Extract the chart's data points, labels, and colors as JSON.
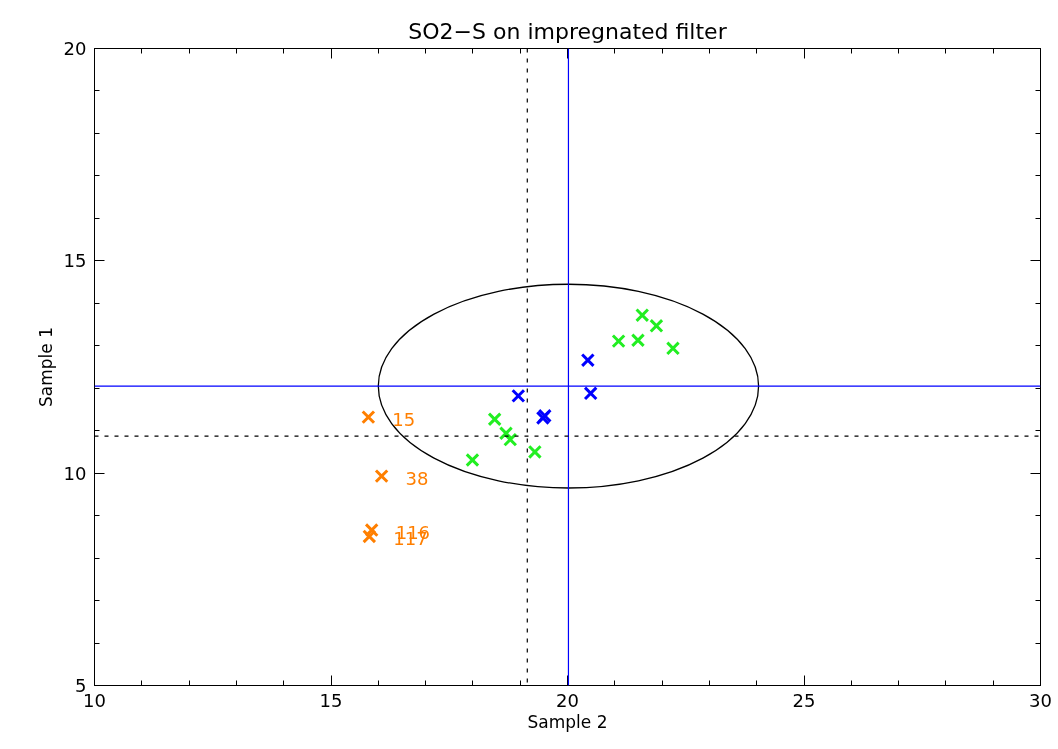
{
  "chart_data": {
    "type": "scatter",
    "title": "SO2−S on impregnated filter",
    "xlabel": "Sample 2",
    "ylabel": "Sample 1",
    "xlim": [
      10,
      30
    ],
    "ylim": [
      5,
      20
    ],
    "xticks": [
      10,
      15,
      20,
      25,
      30
    ],
    "yticks": [
      5,
      10,
      15,
      20
    ],
    "grid": false,
    "marker": "cross",
    "series": [
      {
        "color": "#ff7f00",
        "x": [
          15.79,
          16.07,
          15.86,
          15.81
        ],
        "values": [
          11.32,
          9.93,
          8.66,
          8.51
        ]
      },
      {
        "color": "#22ee22",
        "x": [
          21.58,
          21.88,
          21.08,
          21.49,
          22.23,
          18.46,
          18.7,
          18.79,
          19.31,
          17.99
        ],
        "values": [
          13.72,
          13.47,
          13.11,
          13.13,
          12.94,
          11.27,
          10.94,
          10.79,
          10.5,
          10.31
        ]
      },
      {
        "color": "#0000ff",
        "x": [
          20.43,
          20.49,
          18.96,
          19.48,
          19.52
        ],
        "values": [
          12.66,
          11.88,
          11.82,
          11.3,
          11.35
        ]
      }
    ],
    "ref_lines": [
      {
        "axis": "x",
        "value": 20.02,
        "color": "#0000ff",
        "line_style": "solid"
      },
      {
        "axis": "y",
        "value": 12.05,
        "color": "#0000ff",
        "line_style": "solid"
      },
      {
        "axis": "x",
        "value": 19.15,
        "color": "#000000",
        "line_style": "dashed"
      },
      {
        "axis": "y",
        "value": 10.87,
        "color": "#000000",
        "line_style": "dashed"
      }
    ],
    "annotations": [
      {
        "text": "15",
        "x": 15.79,
        "y": 11.32
      },
      {
        "text": "38",
        "x": 16.07,
        "y": 9.93
      },
      {
        "text": "116",
        "x": 15.86,
        "y": 8.66
      },
      {
        "text": "117",
        "x": 15.81,
        "y": 8.51
      }
    ]
  }
}
